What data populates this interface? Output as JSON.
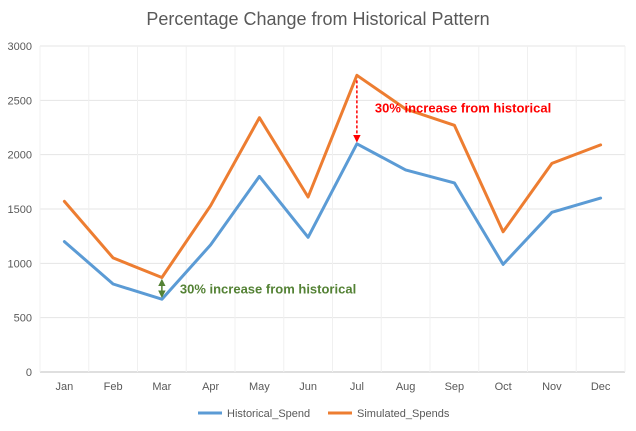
{
  "chart_data": {
    "type": "line",
    "title": "Percentage Change from Historical Pattern",
    "xlabel": "",
    "ylabel": "",
    "categories": [
      "Jan",
      "Feb",
      "Mar",
      "Apr",
      "May",
      "Jun",
      "Jul",
      "Aug",
      "Sep",
      "Oct",
      "Nov",
      "Dec"
    ],
    "ylim": [
      0,
      3000
    ],
    "yticks": [
      0,
      500,
      1000,
      1500,
      2000,
      2500,
      3000
    ],
    "grid": true,
    "legend_position": "bottom",
    "series": [
      {
        "name": "Historical_Spend",
        "color": "#5B9BD5",
        "values": [
          1200,
          810,
          670,
          1170,
          1800,
          1240,
          2100,
          1860,
          1740,
          990,
          1470,
          1600
        ]
      },
      {
        "name": "Simulated_Spends",
        "color": "#ED7D31",
        "values": [
          1570,
          1050,
          870,
          1530,
          2340,
          1610,
          2730,
          2420,
          2270,
          1290,
          1920,
          2090
        ]
      }
    ],
    "annotations": [
      {
        "text": "30% increase from historical",
        "category": "Mar",
        "color": "#548235",
        "arrow": "double"
      },
      {
        "text": "30% increase from historical",
        "category": "Jul",
        "color": "#FF0000",
        "arrow": "dashed"
      }
    ]
  }
}
